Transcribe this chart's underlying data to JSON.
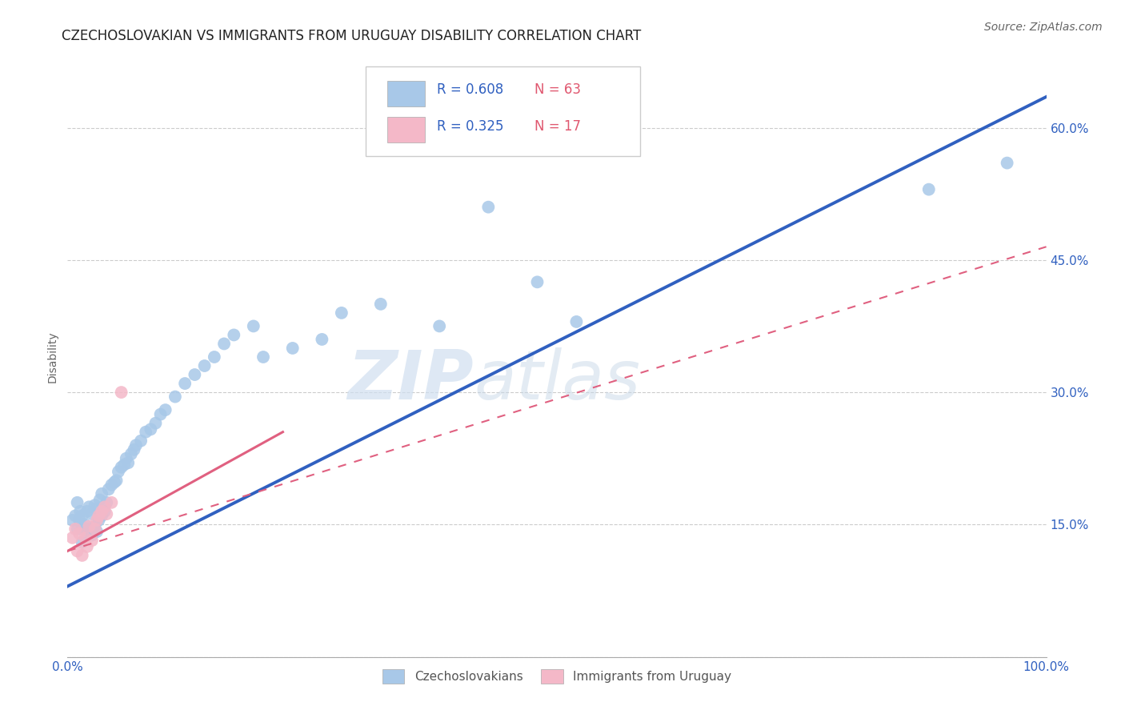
{
  "title": "CZECHOSLOVAKIAN VS IMMIGRANTS FROM URUGUAY DISABILITY CORRELATION CHART",
  "source": "Source: ZipAtlas.com",
  "ylabel": "Disability",
  "xlim": [
    0.0,
    1.0
  ],
  "ylim": [
    0.0,
    0.68
  ],
  "xticks": [
    0.0,
    0.25,
    0.5,
    0.75,
    1.0
  ],
  "xtick_labels": [
    "0.0%",
    "",
    "",
    "",
    "100.0%"
  ],
  "yticks": [
    0.0,
    0.15,
    0.3,
    0.45,
    0.6
  ],
  "ytick_labels_right": [
    "",
    "15.0%",
    "30.0%",
    "45.0%",
    "60.0%"
  ],
  "watermark": "ZIPatlas",
  "blue_color": "#a8c8e8",
  "pink_color": "#f4b8c8",
  "line_blue_color": "#3060c0",
  "line_pink_color": "#e06080",
  "R_blue": 0.608,
  "N_blue": 63,
  "R_pink": 0.325,
  "N_pink": 17,
  "blue_scatter_x": [
    0.005,
    0.008,
    0.01,
    0.01,
    0.012,
    0.013,
    0.015,
    0.015,
    0.015,
    0.018,
    0.02,
    0.02,
    0.022,
    0.022,
    0.025,
    0.025,
    0.028,
    0.028,
    0.03,
    0.03,
    0.032,
    0.033,
    0.035,
    0.035,
    0.038,
    0.04,
    0.042,
    0.045,
    0.048,
    0.05,
    0.052,
    0.055,
    0.058,
    0.06,
    0.062,
    0.065,
    0.068,
    0.07,
    0.075,
    0.08,
    0.085,
    0.09,
    0.095,
    0.1,
    0.11,
    0.12,
    0.13,
    0.14,
    0.15,
    0.16,
    0.17,
    0.19,
    0.2,
    0.23,
    0.26,
    0.28,
    0.32,
    0.38,
    0.43,
    0.48,
    0.52,
    0.88,
    0.96
  ],
  "blue_scatter_y": [
    0.155,
    0.16,
    0.145,
    0.175,
    0.155,
    0.165,
    0.13,
    0.148,
    0.16,
    0.15,
    0.14,
    0.165,
    0.145,
    0.17,
    0.138,
    0.162,
    0.148,
    0.172,
    0.142,
    0.168,
    0.155,
    0.178,
    0.16,
    0.185,
    0.165,
    0.175,
    0.19,
    0.195,
    0.198,
    0.2,
    0.21,
    0.215,
    0.218,
    0.225,
    0.22,
    0.23,
    0.235,
    0.24,
    0.245,
    0.255,
    0.258,
    0.265,
    0.275,
    0.28,
    0.295,
    0.31,
    0.32,
    0.33,
    0.34,
    0.355,
    0.365,
    0.375,
    0.34,
    0.35,
    0.36,
    0.39,
    0.4,
    0.375,
    0.51,
    0.425,
    0.38,
    0.53,
    0.56
  ],
  "pink_scatter_x": [
    0.005,
    0.008,
    0.01,
    0.012,
    0.015,
    0.018,
    0.02,
    0.022,
    0.025,
    0.028,
    0.03,
    0.032,
    0.035,
    0.038,
    0.04,
    0.045,
    0.055
  ],
  "pink_scatter_y": [
    0.135,
    0.145,
    0.12,
    0.14,
    0.115,
    0.135,
    0.125,
    0.148,
    0.132,
    0.145,
    0.155,
    0.16,
    0.165,
    0.17,
    0.162,
    0.175,
    0.3
  ],
  "blue_line_x": [
    0.0,
    1.0
  ],
  "blue_line_y": [
    0.08,
    0.635
  ],
  "pink_solid_line_x": [
    0.0,
    0.22
  ],
  "pink_solid_line_y": [
    0.12,
    0.255
  ],
  "pink_dashed_line_x": [
    0.0,
    1.0
  ],
  "pink_dashed_line_y": [
    0.12,
    0.465
  ],
  "grid_color": "#cccccc",
  "background_color": "#ffffff",
  "title_fontsize": 12,
  "tick_fontsize": 11,
  "source_fontsize": 10
}
